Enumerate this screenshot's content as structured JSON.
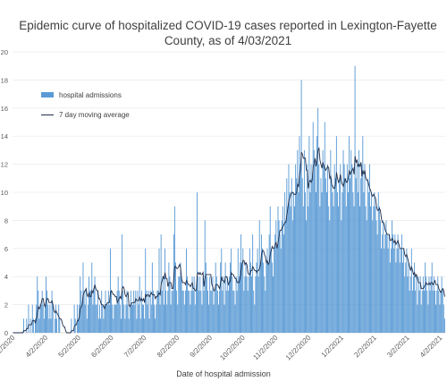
{
  "chart_data": {
    "type": "bar",
    "title": "Epidemic curve of hospitalized COVID-19 cases reported in Lexington-Fayette County, as of 4/03/2021",
    "xlabel": "Date of hospital admission",
    "ylabel": "",
    "ylim": [
      0,
      20
    ],
    "yticks": [
      "0",
      "2",
      "4",
      "6",
      "8",
      "10",
      "12",
      "14",
      "16",
      "18",
      "20"
    ],
    "xticks": [
      "3/2/2020",
      "4/2/2020",
      "5/2/2020",
      "6/2/2020",
      "7/2/2020",
      "8/2/2020",
      "9/2/2020",
      "10/2/2020",
      "11/2/2020",
      "12/2/2020",
      "1/2/2021",
      "2/2/2021",
      "3/2/2021",
      "4/2/2021"
    ],
    "x_start": "2020-03-02",
    "series": [
      {
        "name": "hospital admissions",
        "kind": "bar",
        "color": "#5b9bd5",
        "values": [
          0,
          0,
          0,
          0,
          0,
          0,
          0,
          0,
          0,
          0,
          0,
          1,
          0,
          0,
          1,
          0,
          2,
          0,
          1,
          0,
          2,
          1,
          0,
          1,
          2,
          4,
          3,
          1,
          2,
          2,
          3,
          2,
          1,
          2,
          4,
          3,
          2,
          1,
          2,
          1,
          3,
          2,
          0,
          1,
          2,
          1,
          0,
          2,
          1,
          0,
          0,
          0,
          0,
          0,
          0,
          0,
          0,
          0,
          0,
          0,
          1,
          0,
          0,
          2,
          1,
          0,
          2,
          1,
          2,
          4,
          3,
          2,
          5,
          3,
          2,
          3,
          1,
          2,
          4,
          3,
          3,
          5,
          2,
          3,
          4,
          2,
          2,
          3,
          1,
          2,
          1,
          3,
          2,
          1,
          2,
          3,
          2,
          2,
          3,
          2,
          6,
          3,
          2,
          1,
          2,
          2,
          2,
          3,
          4,
          3,
          2,
          1,
          7,
          3,
          2,
          1,
          2,
          3,
          2,
          1,
          2,
          3,
          2,
          2,
          3,
          2,
          3,
          1,
          3,
          2,
          4,
          1,
          3,
          2,
          2,
          1,
          6,
          3,
          2,
          3,
          1,
          3,
          2,
          5,
          3,
          2,
          1,
          2,
          3,
          3,
          6,
          2,
          7,
          3,
          4,
          2,
          6,
          3,
          2,
          3,
          5,
          4,
          2,
          3,
          3,
          7,
          9,
          5,
          3,
          2,
          4,
          4,
          5,
          4,
          3,
          3,
          2,
          3,
          6,
          4,
          3,
          3,
          2,
          3,
          4,
          3,
          4,
          2,
          3,
          10,
          4,
          3,
          4,
          3,
          2,
          4,
          3,
          8,
          5,
          4,
          3,
          2,
          4,
          3,
          3,
          4,
          2,
          3,
          5,
          4,
          3,
          2,
          3,
          5,
          6,
          3,
          4,
          2,
          5,
          3,
          4,
          3,
          4,
          5,
          6,
          4,
          3,
          3,
          2,
          4,
          3,
          6,
          4,
          5,
          7,
          5,
          6,
          3,
          4,
          5,
          4,
          3,
          4,
          6,
          5,
          4,
          7,
          3,
          2,
          4,
          5,
          6,
          4,
          8,
          5,
          7,
          6,
          5,
          4,
          3,
          5,
          6,
          5,
          7,
          9,
          6,
          5,
          4,
          6,
          7,
          8,
          6,
          9,
          8,
          7,
          6,
          8,
          9,
          7,
          10,
          8,
          11,
          9,
          12,
          10,
          9,
          11,
          8,
          10,
          9,
          12,
          11,
          13,
          10,
          14,
          12,
          18,
          11,
          9,
          13,
          10,
          8,
          12,
          9,
          14,
          10,
          12,
          11,
          15,
          13,
          12,
          10,
          14,
          16,
          12,
          9,
          11,
          10,
          13,
          12,
          15,
          11,
          10,
          12,
          9,
          8,
          13,
          11,
          10,
          9,
          12,
          11,
          14,
          10,
          9,
          11,
          12,
          8,
          10,
          13,
          12,
          11,
          9,
          12,
          10,
          14,
          11,
          13,
          12,
          10,
          9,
          19,
          11,
          12,
          10,
          13,
          9,
          11,
          12,
          14,
          10,
          12,
          9,
          8,
          11,
          10,
          12,
          9,
          10,
          8,
          9,
          10,
          9,
          8,
          7,
          10,
          9,
          8,
          6,
          7,
          8,
          6,
          7,
          8,
          7,
          6,
          7,
          5,
          6,
          8,
          7,
          6,
          7,
          5,
          6,
          7,
          6,
          5,
          6,
          7,
          5,
          6,
          4,
          5,
          6,
          4,
          5,
          3,
          4,
          6,
          3,
          4,
          5,
          3,
          4,
          2,
          4,
          3,
          4,
          2,
          3,
          4,
          3,
          5,
          4,
          3,
          2,
          4,
          3,
          4,
          5,
          3,
          4,
          3,
          2,
          3,
          4,
          3,
          2,
          3,
          4,
          3,
          2,
          1
        ]
      },
      {
        "name": "7 day moving average",
        "kind": "line",
        "color": "#1f2d4a"
      }
    ]
  }
}
